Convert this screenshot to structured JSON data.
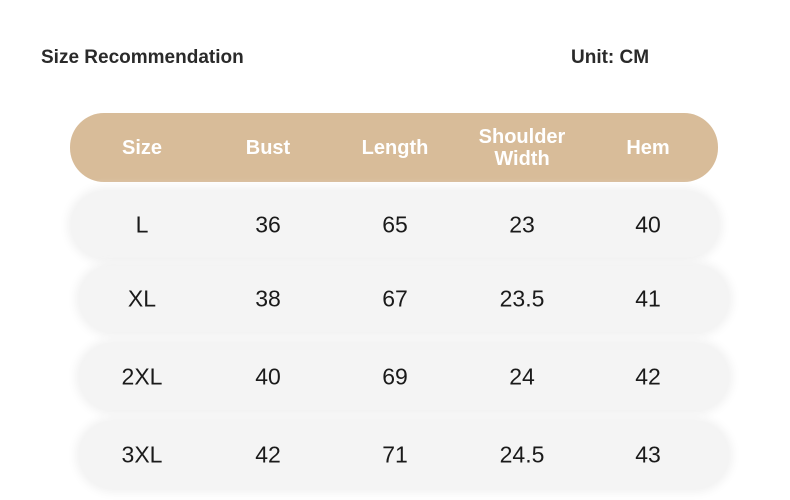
{
  "header": {
    "title": "Size Recommendation",
    "unit": "Unit: CM"
  },
  "table": {
    "columns": [
      "Size",
      "Bust",
      "Length",
      "Shoulder Width",
      "Hem"
    ],
    "rows": [
      [
        "L",
        "36",
        "65",
        "23",
        "40"
      ],
      [
        "XL",
        "38",
        "67",
        "23.5",
        "41"
      ],
      [
        "2XL",
        "40",
        "69",
        "24",
        "42"
      ],
      [
        "3XL",
        "42",
        "71",
        "24.5",
        "43"
      ]
    ]
  }
}
